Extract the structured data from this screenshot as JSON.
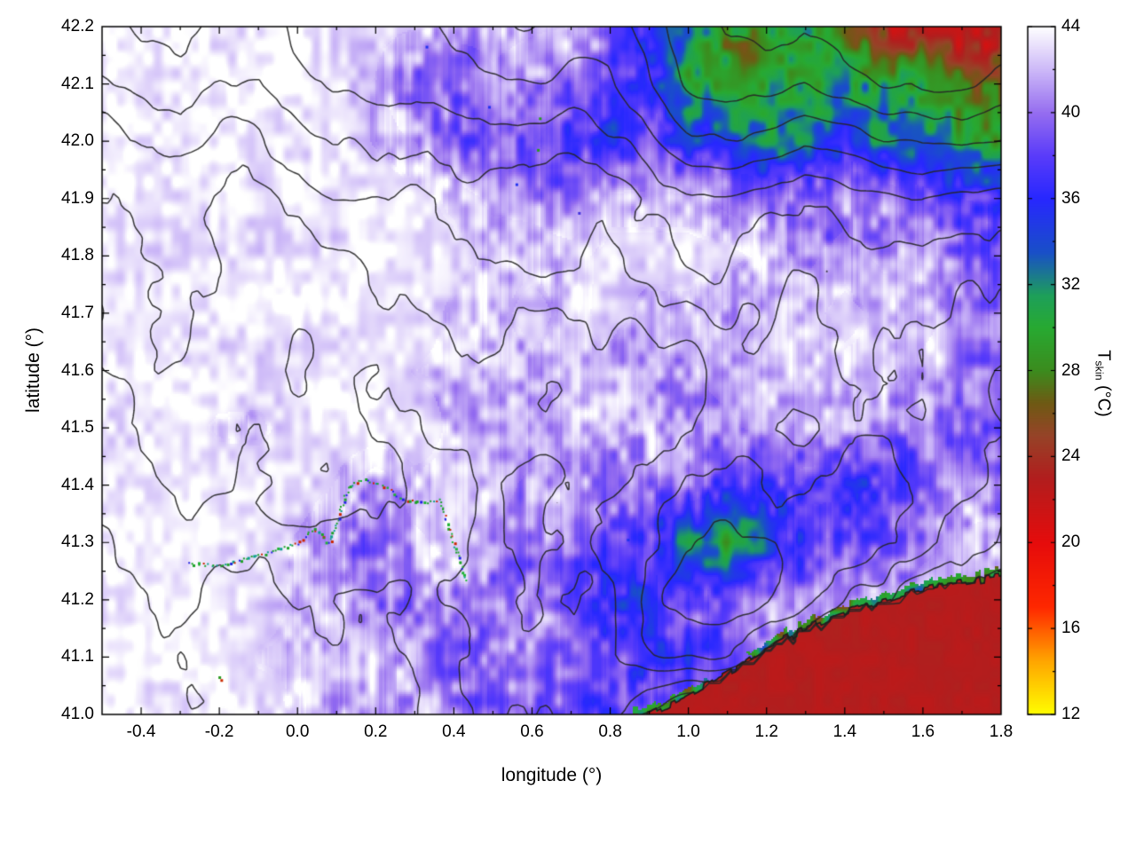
{
  "chart_data": {
    "type": "heatmap",
    "title": "",
    "xlabel": "longitude (°)",
    "ylabel": "latitude (°)",
    "colorbar_label": {
      "prefix": "T",
      "sub": "skin",
      "suffix": " (°C)"
    },
    "x_range": [
      -0.5,
      1.8
    ],
    "y_range": [
      41.0,
      42.2
    ],
    "cb_range": [
      12,
      44
    ],
    "x_minor_step": 0.1,
    "y_minor_step": 0.05,
    "cb_minor_step": 2,
    "x_ticks": [
      {
        "v": -0.4,
        "label": "-0.4"
      },
      {
        "v": -0.2,
        "label": "-0.2"
      },
      {
        "v": 0,
        "label": "0.0"
      },
      {
        "v": 0.2,
        "label": "0.2"
      },
      {
        "v": 0.4,
        "label": "0.4"
      },
      {
        "v": 0.6,
        "label": "0.6"
      },
      {
        "v": 0.8,
        "label": "0.8"
      },
      {
        "v": 1,
        "label": "1.0"
      },
      {
        "v": 1.2,
        "label": "1.2"
      },
      {
        "v": 1.4,
        "label": "1.4"
      },
      {
        "v": 1.6,
        "label": "1.6"
      },
      {
        "v": 1.8,
        "label": "1.8"
      }
    ],
    "y_ticks": [
      {
        "v": 41.0,
        "label": "41.0"
      },
      {
        "v": 41.1,
        "label": "41.1"
      },
      {
        "v": 41.2,
        "label": "41.2"
      },
      {
        "v": 41.3,
        "label": "41.3"
      },
      {
        "v": 41.4,
        "label": "41.4"
      },
      {
        "v": 41.5,
        "label": "41.5"
      },
      {
        "v": 41.6,
        "label": "41.6"
      },
      {
        "v": 41.7,
        "label": "41.7"
      },
      {
        "v": 41.8,
        "label": "41.8"
      },
      {
        "v": 41.9,
        "label": "41.9"
      },
      {
        "v": 42.0,
        "label": "42.0"
      },
      {
        "v": 42.1,
        "label": "42.1"
      },
      {
        "v": 42.2,
        "label": "42.2"
      }
    ],
    "cb_ticks": [
      {
        "v": 44,
        "label": "44"
      },
      {
        "v": 40,
        "label": "40"
      },
      {
        "v": 36,
        "label": "36"
      },
      {
        "v": 32,
        "label": "32"
      },
      {
        "v": 28,
        "label": "28"
      },
      {
        "v": 24,
        "label": "24"
      },
      {
        "v": 20,
        "label": "20"
      },
      {
        "v": 16,
        "label": "16"
      },
      {
        "v": 12,
        "label": "12"
      }
    ],
    "palette_stops": [
      [
        12,
        "#ffff00"
      ],
      [
        14.5,
        "#ffa600"
      ],
      [
        17,
        "#ff2800"
      ],
      [
        20,
        "#e60c0c"
      ],
      [
        23,
        "#b21e1e"
      ],
      [
        25,
        "#964428"
      ],
      [
        26.5,
        "#6f5a14"
      ],
      [
        28,
        "#3c8c1e"
      ],
      [
        30,
        "#28aa32"
      ],
      [
        31.5,
        "#1ea05a"
      ],
      [
        33.5,
        "#1950c8"
      ],
      [
        36,
        "#2828ff"
      ],
      [
        38,
        "#5a3cfa"
      ],
      [
        40,
        "#966ef0"
      ],
      [
        42,
        "#cdb9f8"
      ],
      [
        44,
        "#ffffff"
      ]
    ],
    "grid": {
      "lon_start": -0.5,
      "lon_step": 0.1,
      "lat_start": 42.2,
      "lat_step": -0.1,
      "cols": 24,
      "rows": 13
    },
    "temperature": [
      [
        43.5,
        43.5,
        43.5,
        43.5,
        43.5,
        43.5,
        43.3,
        43.2,
        42.8,
        42.5,
        42.3,
        41.8,
        41.5,
        40.5,
        37,
        31,
        29.5,
        30,
        30,
        28.5,
        24,
        22.5,
        22.5,
        23
      ],
      [
        43.5,
        43.5,
        43.5,
        43.5,
        43.5,
        43.5,
        43.2,
        42.5,
        38.5,
        38.8,
        41,
        40,
        38.5,
        38.5,
        37,
        31,
        29,
        29.5,
        29,
        30,
        30.5,
        29,
        27,
        25
      ],
      [
        43.5,
        43.5,
        43.5,
        43.5,
        43.5,
        43.5,
        43.2,
        42.5,
        41.5,
        40,
        39,
        38,
        37,
        36.5,
        38.5,
        36.5,
        33,
        31,
        33.5,
        35.5,
        33,
        31,
        30,
        30.5
      ],
      [
        43.5,
        43.5,
        43.5,
        43.5,
        43.5,
        43.5,
        43.4,
        43.3,
        43,
        42.2,
        41.2,
        41,
        40.2,
        42,
        42,
        42,
        41,
        40.2,
        40,
        41,
        40,
        38.5,
        37,
        36.5
      ],
      [
        43.5,
        43.5,
        43.5,
        43.5,
        43.5,
        43.5,
        43.5,
        43.4,
        43.2,
        43,
        42.2,
        42.2,
        42,
        43,
        43,
        43,
        43,
        42.2,
        41.2,
        42,
        41.2,
        41,
        40.2,
        39.5
      ],
      [
        43.5,
        43.5,
        43.5,
        43.5,
        43.5,
        43.5,
        43.5,
        43.5,
        43.4,
        42.3,
        42.2,
        43,
        42.2,
        43,
        42.2,
        42.2,
        41.2,
        42,
        42,
        43,
        42.2,
        42,
        41.2,
        40.2
      ],
      [
        43.5,
        43.5,
        43.5,
        43.5,
        43.5,
        43.5,
        43.5,
        43.5,
        42.5,
        42.3,
        42.2,
        42.2,
        42.2,
        42.2,
        41.3,
        41.3,
        42,
        42.2,
        42.2,
        42.2,
        42.2,
        41.2,
        40.3,
        40.2
      ],
      [
        43.5,
        43.5,
        43.3,
        42.3,
        42.2,
        43.3,
        43.5,
        43.5,
        43.4,
        42.3,
        42.2,
        42.2,
        42.2,
        42.2,
        41.2,
        41.2,
        41.2,
        42,
        41.2,
        40.2,
        40.2,
        39.5,
        38.5,
        39
      ],
      [
        43.5,
        43.5,
        43.5,
        43.5,
        43.5,
        43.4,
        42.4,
        40.5,
        42.2,
        42.2,
        42,
        41.2,
        41,
        40.2,
        40,
        39.2,
        38.2,
        38,
        36.5,
        36.5,
        37.2,
        39,
        40,
        41
      ],
      [
        43.5,
        43.5,
        43.5,
        43.5,
        43.4,
        42.4,
        41.3,
        40.3,
        41.2,
        42,
        41.2,
        41,
        40.2,
        38.5,
        38,
        31.5,
        29.5,
        36,
        38,
        38.2,
        39.2,
        41,
        42,
        42.2
      ],
      [
        43.5,
        43.5,
        43.5,
        43.5,
        43.4,
        42.3,
        42.2,
        41.2,
        41,
        40.2,
        40,
        40,
        39.2,
        36.8,
        37,
        38,
        39.2,
        40.2,
        41,
        41.5,
        42,
        42.3,
        42.3,
        42.3
      ],
      [
        43.5,
        43.5,
        43.5,
        43.5,
        42.4,
        42.3,
        42.2,
        42,
        41,
        40.2,
        39.2,
        40,
        39.2,
        38.2,
        36.5,
        38,
        39.5,
        40.5,
        41.2,
        41.5,
        42,
        42,
        42.2,
        42.3
      ],
      [
        43.5,
        43.5,
        43.5,
        43.5,
        43.4,
        42.3,
        42.2,
        42,
        41.2,
        40.2,
        39.2,
        39.2,
        38.2,
        36.5,
        38,
        39,
        40,
        41,
        41.5,
        42,
        42,
        42.2,
        42.3,
        42.3
      ]
    ],
    "contour_levels": [
      250,
      350,
      450,
      550,
      650,
      800,
      1000,
      1200,
      1400,
      1600
    ],
    "elevation": [
      [
        700,
        800,
        850,
        780,
        720,
        800,
        900,
        980,
        900,
        1000,
        1100,
        1150,
        1100,
        1200,
        1300,
        1500,
        1600,
        1700,
        1650,
        1700,
        1800,
        1850,
        1800,
        1750
      ],
      [
        600,
        680,
        750,
        700,
        620,
        700,
        780,
        880,
        820,
        900,
        980,
        1000,
        950,
        1050,
        1200,
        1400,
        1500,
        1480,
        1400,
        1500,
        1600,
        1650,
        1600,
        1500
      ],
      [
        500,
        560,
        620,
        580,
        520,
        560,
        620,
        700,
        660,
        720,
        800,
        780,
        720,
        820,
        950,
        1100,
        1200,
        1120,
        1020,
        1100,
        1200,
        1280,
        1200,
        1100
      ],
      [
        450,
        500,
        540,
        510,
        470,
        500,
        530,
        570,
        545,
        570,
        610,
        590,
        565,
        610,
        660,
        720,
        800,
        720,
        660,
        700,
        760,
        800,
        750,
        700
      ],
      [
        400,
        450,
        495,
        470,
        425,
        460,
        480,
        505,
        480,
        505,
        525,
        505,
        480,
        505,
        550,
        600,
        650,
        600,
        550,
        595,
        620,
        650,
        600,
        550
      ],
      [
        375,
        420,
        455,
        435,
        398,
        420,
        440,
        462,
        440,
        462,
        482,
        462,
        440,
        462,
        500,
        522,
        560,
        522,
        480,
        520,
        542,
        560,
        520,
        480
      ],
      [
        350,
        398,
        430,
        410,
        378,
        398,
        412,
        430,
        410,
        430,
        450,
        430,
        410,
        432,
        462,
        482,
        520,
        482,
        442,
        480,
        500,
        520,
        480,
        440
      ],
      [
        300,
        350,
        398,
        378,
        348,
        368,
        380,
        400,
        380,
        400,
        420,
        400,
        380,
        400,
        440,
        462,
        500,
        462,
        420,
        460,
        482,
        500,
        460,
        420
      ],
      [
        280,
        320,
        358,
        340,
        310,
        330,
        342,
        360,
        342,
        380,
        420,
        440,
        420,
        462,
        500,
        560,
        600,
        560,
        520,
        558,
        580,
        560,
        500,
        440
      ],
      [
        250,
        300,
        330,
        310,
        282,
        300,
        312,
        330,
        330,
        380,
        432,
        470,
        450,
        500,
        560,
        640,
        680,
        640,
        580,
        600,
        560,
        500,
        420,
        340
      ],
      [
        220,
        262,
        300,
        280,
        250,
        270,
        282,
        300,
        320,
        380,
        440,
        480,
        460,
        520,
        580,
        640,
        660,
        600,
        520,
        460,
        380,
        300,
        240,
        198
      ],
      [
        200,
        240,
        270,
        252,
        230,
        250,
        262,
        282,
        300,
        360,
        420,
        460,
        440,
        500,
        540,
        560,
        520,
        440,
        340,
        258,
        180,
        140,
        118,
        100
      ],
      [
        180,
        220,
        250,
        232,
        210,
        230,
        242,
        262,
        282,
        340,
        400,
        420,
        400,
        380,
        200,
        100,
        80,
        60,
        48,
        38,
        28,
        18,
        10,
        5
      ]
    ],
    "coastline": [
      [
        0.9,
        41.0
      ],
      [
        1.0,
        41.035
      ],
      [
        1.08,
        41.065
      ],
      [
        1.15,
        41.09
      ],
      [
        1.2,
        41.115
      ],
      [
        1.28,
        41.145
      ],
      [
        1.35,
        41.165
      ],
      [
        1.45,
        41.19
      ],
      [
        1.55,
        41.21
      ],
      [
        1.65,
        41.225
      ],
      [
        1.8,
        41.24
      ]
    ],
    "sea_temperature": 22.8,
    "river": [
      [
        -0.28,
        41.265
      ],
      [
        -0.2,
        41.26
      ],
      [
        -0.12,
        41.275
      ],
      [
        -0.05,
        41.29
      ],
      [
        0.0,
        41.3
      ],
      [
        0.04,
        41.325
      ],
      [
        0.08,
        41.3
      ],
      [
        0.1,
        41.34
      ],
      [
        0.13,
        41.4
      ],
      [
        0.17,
        41.41
      ],
      [
        0.22,
        41.4
      ],
      [
        0.27,
        41.375
      ],
      [
        0.32,
        41.37
      ],
      [
        0.36,
        41.375
      ],
      [
        0.38,
        41.34
      ],
      [
        0.4,
        41.295
      ],
      [
        0.42,
        41.26
      ],
      [
        0.43,
        41.23
      ]
    ],
    "specks": [
      {
        "lon": -0.2,
        "lat": 41.065,
        "color": "#2a9a20"
      },
      {
        "lon": -0.195,
        "lat": 41.06,
        "color": "#cc2a00"
      },
      {
        "lon": 0.62,
        "lat": 42.04,
        "color": "#2a9a20"
      },
      {
        "lon": 0.615,
        "lat": 41.985,
        "color": "#2a9a20"
      },
      {
        "lon": 0.56,
        "lat": 41.925,
        "color": "#2233ee"
      },
      {
        "lon": 0.33,
        "lat": 42.165,
        "color": "#2233ee"
      },
      {
        "lon": 0.49,
        "lat": 42.06,
        "color": "#2233ee"
      },
      {
        "lon": 0.845,
        "lat": 41.305,
        "color": "#2233ee"
      },
      {
        "lon": 0.72,
        "lat": 41.875,
        "color": "#4433dd"
      }
    ]
  }
}
